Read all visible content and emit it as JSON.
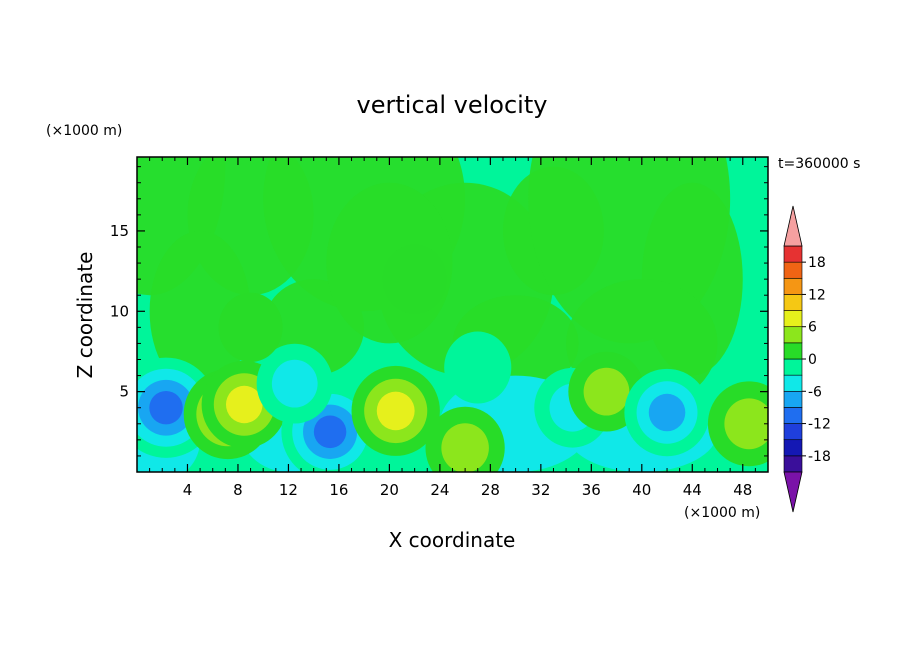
{
  "chart_data": {
    "type": "heatmap",
    "title": "vertical velocity",
    "xlabel": "X coordinate",
    "ylabel": "Z coordinate",
    "x_unit": "(×1000 m)",
    "y_unit": "(×1000 m)",
    "time_label": "t=360000 s",
    "xlim": [
      0,
      50
    ],
    "ylim": [
      0,
      19.6
    ],
    "x_ticks": [
      4,
      8,
      12,
      16,
      20,
      24,
      28,
      32,
      36,
      40,
      44,
      48
    ],
    "y_ticks": [
      5,
      10,
      15
    ],
    "colorbar": {
      "ticks": [
        18,
        12,
        6,
        0,
        -6,
        -12,
        -18
      ],
      "levels": [
        -21,
        -18,
        -15,
        -12,
        -9,
        -6,
        -3,
        0,
        3,
        6,
        9,
        12,
        15,
        18,
        21
      ],
      "colors": [
        "#3a0f9a",
        "#1418b4",
        "#1f3fdc",
        "#1f6ef0",
        "#18a6f2",
        "#10e8e8",
        "#00f59a",
        "#28dc28",
        "#8ce61c",
        "#e6f01c",
        "#f5c814",
        "#f59614",
        "#f06414",
        "#e63232"
      ],
      "under_color": "#7a12a8",
      "over_color": "#f5a0a0"
    },
    "features": [
      {
        "x": 2.3,
        "z": 4.0,
        "value": -14
      },
      {
        "x": 7.2,
        "z": 3.6,
        "value": 10
      },
      {
        "x": 8.5,
        "z": 4.2,
        "value": 9
      },
      {
        "x": 15.3,
        "z": 2.5,
        "value": -13
      },
      {
        "x": 12.5,
        "z": 5.5,
        "value": -6
      },
      {
        "x": 20.5,
        "z": 3.8,
        "value": 10
      },
      {
        "x": 26.0,
        "z": 1.5,
        "value": 7
      },
      {
        "x": 34.5,
        "z": 4.0,
        "value": -6
      },
      {
        "x": 37.2,
        "z": 5.0,
        "value": 6
      },
      {
        "x": 42.0,
        "z": 3.7,
        "value": -9
      },
      {
        "x": 48.5,
        "z": 3.0,
        "value": 8
      },
      {
        "x": 27.0,
        "z": 6.5,
        "value": -3
      },
      {
        "x": 22.0,
        "z": 12.0,
        "value": 2
      },
      {
        "x": 9.0,
        "z": 9.0,
        "value": 2
      }
    ]
  }
}
